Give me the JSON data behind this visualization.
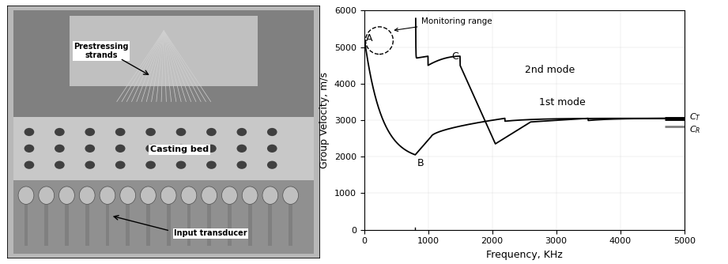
{
  "xlabel": "Frequency, KHz",
  "ylabel": "Group Velocity, m/s",
  "xlim": [
    0,
    5000
  ],
  "ylim": [
    0,
    6000
  ],
  "xticks": [
    0,
    1000,
    2000,
    3000,
    4000,
    5000
  ],
  "yticks": [
    0,
    1000,
    2000,
    3000,
    4000,
    5000,
    6000
  ],
  "CT": 3050,
  "CR": 2820,
  "mode1_label": "1st mode",
  "mode2_label": "2nd mode",
  "monitoring_label": "Monitoring range",
  "point_A": "A",
  "point_B": "B",
  "point_C": "C",
  "CT_label": "$C_T$",
  "CR_label": "$C_R$",
  "photo_labels": {
    "strands": "Prestressing\nstrands",
    "bed": "Casting bed",
    "transducer": "Input transducer"
  }
}
